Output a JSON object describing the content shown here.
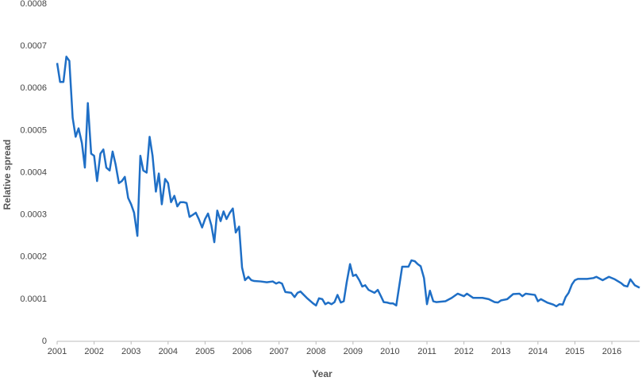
{
  "chart_data": {
    "type": "line",
    "x_label": "Year",
    "y_label": "Relative spread",
    "x": [
      2001.0,
      2001.08,
      2001.17,
      2001.25,
      2001.33,
      2001.42,
      2001.5,
      2001.58,
      2001.67,
      2001.75,
      2001.83,
      2001.92,
      2002.0,
      2002.08,
      2002.17,
      2002.25,
      2002.33,
      2002.42,
      2002.5,
      2002.58,
      2002.67,
      2002.75,
      2002.83,
      2002.92,
      2003.0,
      2003.08,
      2003.17,
      2003.25,
      2003.33,
      2003.42,
      2003.5,
      2003.58,
      2003.67,
      2003.75,
      2003.83,
      2003.92,
      2004.0,
      2004.08,
      2004.17,
      2004.25,
      2004.33,
      2004.42,
      2004.5,
      2004.58,
      2004.67,
      2004.75,
      2004.83,
      2004.92,
      2005.0,
      2005.08,
      2005.17,
      2005.25,
      2005.33,
      2005.42,
      2005.5,
      2005.58,
      2005.67,
      2005.75,
      2005.83,
      2005.92,
      2006.0,
      2006.08,
      2006.17,
      2006.25,
      2006.33,
      2006.5,
      2006.67,
      2006.83,
      2006.92,
      2007.0,
      2007.08,
      2007.17,
      2007.33,
      2007.42,
      2007.5,
      2007.58,
      2007.75,
      2007.92,
      2008.0,
      2008.08,
      2008.17,
      2008.25,
      2008.33,
      2008.42,
      2008.5,
      2008.58,
      2008.67,
      2008.75,
      2008.83,
      2008.92,
      2009.0,
      2009.08,
      2009.17,
      2009.25,
      2009.33,
      2009.42,
      2009.58,
      2009.67,
      2009.75,
      2009.83,
      2009.92,
      2010.0,
      2010.08,
      2010.17,
      2010.33,
      2010.5,
      2010.58,
      2010.67,
      2010.75,
      2010.83,
      2010.92,
      2011.0,
      2011.08,
      2011.17,
      2011.25,
      2011.5,
      2011.67,
      2011.83,
      2012.0,
      2012.08,
      2012.25,
      2012.5,
      2012.67,
      2012.83,
      2012.92,
      2013.0,
      2013.17,
      2013.33,
      2013.5,
      2013.58,
      2013.67,
      2013.92,
      2014.0,
      2014.08,
      2014.25,
      2014.42,
      2014.5,
      2014.58,
      2014.67,
      2014.75,
      2014.83,
      2014.92,
      2015.0,
      2015.08,
      2015.33,
      2015.5,
      2015.58,
      2015.75,
      2015.92,
      2016.08,
      2016.25,
      2016.33,
      2016.42,
      2016.5,
      2016.62,
      2016.75
    ],
    "series": [
      {
        "name": "Relative spread",
        "color": "#1f6fc6",
        "values": [
          0.00066,
          0.000615,
          0.000615,
          0.000675,
          0.000665,
          0.00053,
          0.000485,
          0.000505,
          0.00047,
          0.000412,
          0.000565,
          0.000445,
          0.00044,
          0.00038,
          0.000445,
          0.000455,
          0.000412,
          0.000405,
          0.00045,
          0.00042,
          0.000375,
          0.00038,
          0.00039,
          0.00034,
          0.000325,
          0.000305,
          0.00025,
          0.00044,
          0.000405,
          0.0004,
          0.000485,
          0.00044,
          0.000355,
          0.000398,
          0.000325,
          0.000385,
          0.000375,
          0.00033,
          0.000345,
          0.00032,
          0.00033,
          0.00033,
          0.000328,
          0.000295,
          0.0003,
          0.000305,
          0.00029,
          0.00027,
          0.00029,
          0.000303,
          0.000275,
          0.000235,
          0.00031,
          0.000285,
          0.000308,
          0.00029,
          0.000305,
          0.000315,
          0.000258,
          0.000272,
          0.000175,
          0.000145,
          0.000153,
          0.000145,
          0.000143,
          0.000142,
          0.00014,
          0.000142,
          0.000137,
          0.00014,
          0.000137,
          0.000117,
          0.000115,
          0.000105,
          0.000115,
          0.000118,
          0.000103,
          9e-05,
          8.5e-05,
          0.000102,
          0.0001,
          8.8e-05,
          9.2e-05,
          8.8e-05,
          9.3e-05,
          0.00011,
          9.2e-05,
          9.5e-05,
          0.00014,
          0.000183,
          0.000155,
          0.000158,
          0.000145,
          0.00013,
          0.000133,
          0.000122,
          0.000115,
          0.000122,
          0.000108,
          9.3e-05,
          9.2e-05,
          9e-05,
          9e-05,
          8.5e-05,
          0.000177,
          0.000177,
          0.000192,
          0.00019,
          0.000183,
          0.000178,
          0.00015,
          8.8e-05,
          0.00012,
          9.5e-05,
          9.3e-05,
          9.5e-05,
          0.000103,
          0.000113,
          0.000107,
          0.000113,
          0.000103,
          0.000103,
          0.0001,
          9.3e-05,
          9.2e-05,
          9.7e-05,
          0.0001,
          0.000112,
          0.000113,
          0.000107,
          0.000113,
          0.00011,
          9.5e-05,
          0.0001,
          9.2e-05,
          8.7e-05,
          8.3e-05,
          8.8e-05,
          8.7e-05,
          0.000105,
          0.000115,
          0.000135,
          0.000145,
          0.000148,
          0.000148,
          0.00015,
          0.000153,
          0.000145,
          0.000153,
          0.000147,
          0.000138,
          0.000132,
          0.00013,
          0.000147,
          0.000133,
          0.000127
        ]
      }
    ],
    "xlim": [
      2001,
      2016.75
    ],
    "xticks": [
      2001,
      2002,
      2003,
      2004,
      2005,
      2006,
      2007,
      2008,
      2009,
      2010,
      2011,
      2012,
      2013,
      2014,
      2015,
      2016
    ],
    "ylim": [
      0,
      0.0008
    ],
    "yticks": [
      0,
      0.0001,
      0.0002,
      0.0003,
      0.0004,
      0.0005,
      0.0006,
      0.0007,
      0.0008
    ],
    "grid": false
  }
}
